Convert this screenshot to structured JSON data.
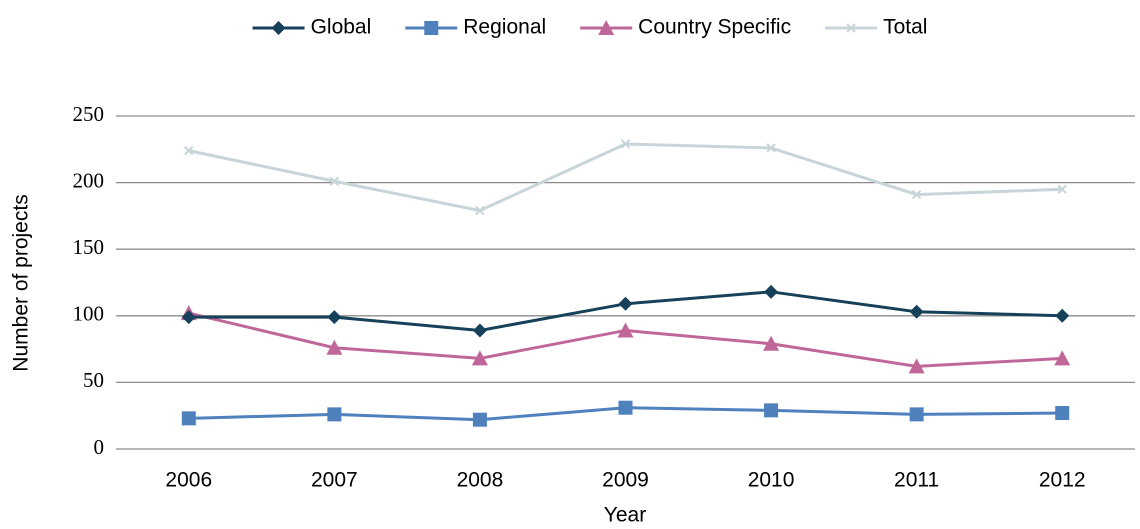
{
  "chart_data": {
    "type": "line",
    "x_label": "Year",
    "y_label": "Number of projects",
    "categories": [
      "2006",
      "2007",
      "2008",
      "2009",
      "2010",
      "2011",
      "2012"
    ],
    "series": [
      {
        "name": "Global",
        "color": "#17405a",
        "marker": "diamond",
        "values": [
          99,
          99,
          89,
          109,
          118,
          103,
          100
        ]
      },
      {
        "name": "Regional",
        "color": "#4f81bd",
        "marker": "square",
        "values": [
          23,
          26,
          22,
          31,
          29,
          26,
          27
        ]
      },
      {
        "name": "Country Specific",
        "color": "#c0679a",
        "marker": "triangle",
        "values": [
          102,
          76,
          68,
          89,
          79,
          62,
          68
        ]
      },
      {
        "name": "Total",
        "color": "#c8d5d8",
        "marker": "x",
        "values": [
          224,
          201,
          179,
          229,
          226,
          191,
          195
        ]
      }
    ],
    "ylim": [
      0,
      250
    ],
    "yticks": [
      0,
      50,
      100,
      150,
      200,
      250
    ],
    "grid": true,
    "legend": "top"
  }
}
